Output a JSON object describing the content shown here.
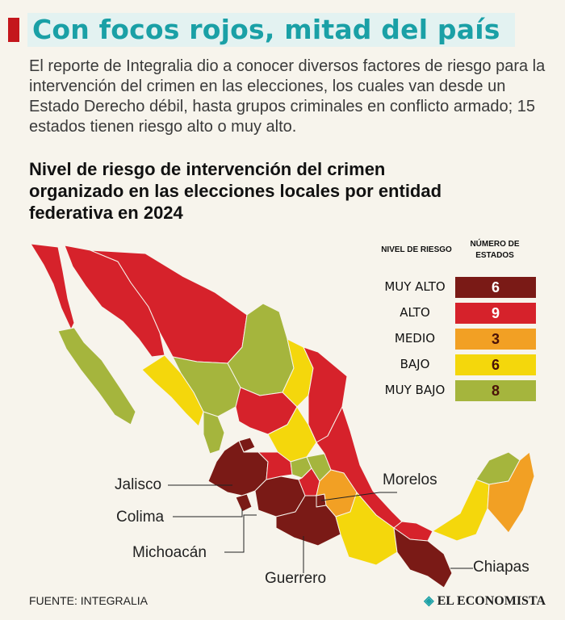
{
  "headline": "Con focos rojos, mitad del país",
  "intro": "El reporte de Integralia dio a conocer diversos factores de riesgo para la intervención del crimen en las elecciones, los cuales van desde un Estado Derecho débil, hasta grupos criminales en conflicto armado; 15 estados tienen riesgo alto o muy alto.",
  "subtitle": "Nivel de riesgo de intervención del crimen organizado en las elecciones locales por entidad federativa en 2024",
  "legend": {
    "header_level": "NIVEL DE RIESGO",
    "header_count": "NÚMERO DE ESTADOS",
    "rows": [
      {
        "label": "MUY ALTO",
        "count": "6",
        "color": "#7a1a16"
      },
      {
        "label": "ALTO",
        "count": "9",
        "color": "#d6222b"
      },
      {
        "label": "MEDIO",
        "count": "3",
        "color": "#f2a024"
      },
      {
        "label": "BAJO",
        "count": "6",
        "color": "#f4d70c"
      },
      {
        "label": "MUY BAJO",
        "count": "8",
        "color": "#a5b53d"
      }
    ]
  },
  "callouts": {
    "jalisco": "Jalisco",
    "colima": "Colima",
    "michoacan": "Michoacán",
    "guerrero": "Guerrero",
    "morelos": "Morelos",
    "chiapas": "Chiapas"
  },
  "source": "FUENTE: INTEGRALIA",
  "brand": "EL ECONOMISTA"
}
